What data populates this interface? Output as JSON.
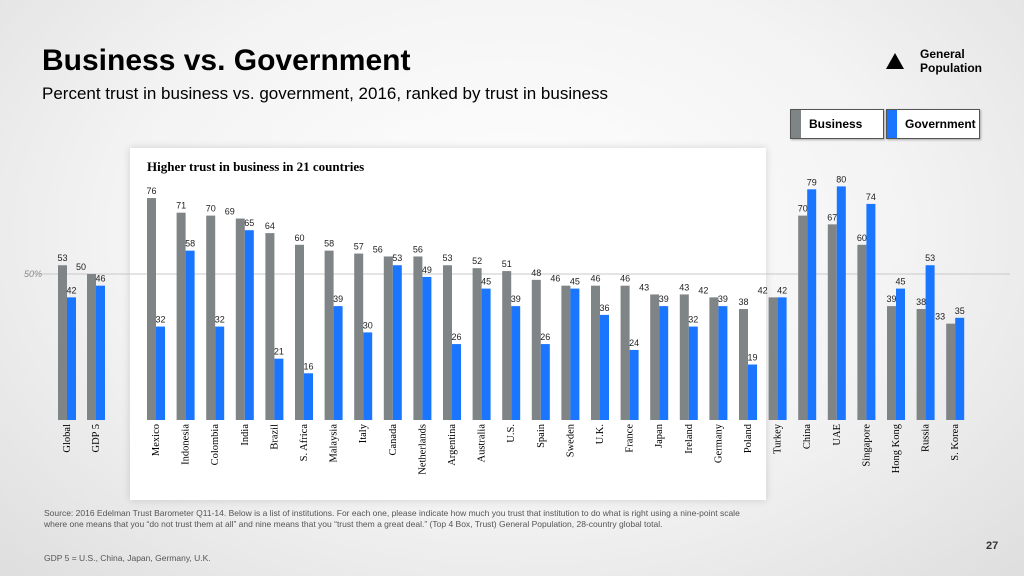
{
  "slide": {
    "title": "Business vs. Government",
    "subtitle": "Percent trust in business vs. government, 2016, ranked by trust in business",
    "gp_label": "General Population",
    "highlight_label": "Higher trust in business in 21 countries",
    "fifty_label": "50%",
    "source": "Source: 2016 Edelman Trust Barometer Q11-14. Below is a list of institutions. For each one, please indicate how much you trust that institution to do what is right using a nine-point scale where one means that you “do not trust them at all” and nine means that you “trust them a great deal.” (Top 4 Box, Trust) General Population, 28-country global total.",
    "gdp_note": "GDP 5 = U.S., China, Japan, Germany, U.K.",
    "page_number": "27",
    "colors": {
      "business": "#7f8487",
      "government": "#1a75ff"
    }
  },
  "chart_data": {
    "type": "bar",
    "title": "Business vs. Government",
    "subtitle": "Percent trust in business vs. government, 2016, ranked by trust in business",
    "categories": [
      "Global",
      "GDP 5",
      "Mexico",
      "Indonesia",
      "Colombia",
      "India",
      "Brazil",
      "S. Africa",
      "Malaysia",
      "Italy",
      "Canada",
      "Netherlands",
      "Argentina",
      "Australia",
      "U.S.",
      "Spain",
      "Sweden",
      "U.K.",
      "France",
      "Japan",
      "Ireland",
      "Germany",
      "Poland",
      "Turkey",
      "China",
      "UAE",
      "Singapore",
      "Hong Kong",
      "Russia",
      "S. Korea"
    ],
    "series": [
      {
        "name": "Business",
        "values": [
          53,
          50,
          76,
          71,
          70,
          69,
          64,
          60,
          58,
          57,
          56,
          56,
          53,
          52,
          51,
          48,
          46,
          46,
          46,
          43,
          43,
          42,
          38,
          42,
          70,
          67,
          60,
          39,
          38,
          33
        ]
      },
      {
        "name": "Government",
        "values": [
          42,
          46,
          32,
          58,
          32,
          65,
          21,
          16,
          39,
          30,
          53,
          49,
          26,
          45,
          39,
          26,
          45,
          36,
          24,
          39,
          32,
          39,
          19,
          42,
          79,
          80,
          74,
          45,
          53,
          35
        ]
      }
    ],
    "ylim": [
      0,
      85
    ],
    "reference_line": 50,
    "legend": [
      "Business",
      "Government"
    ],
    "legend_position": "top-right"
  }
}
